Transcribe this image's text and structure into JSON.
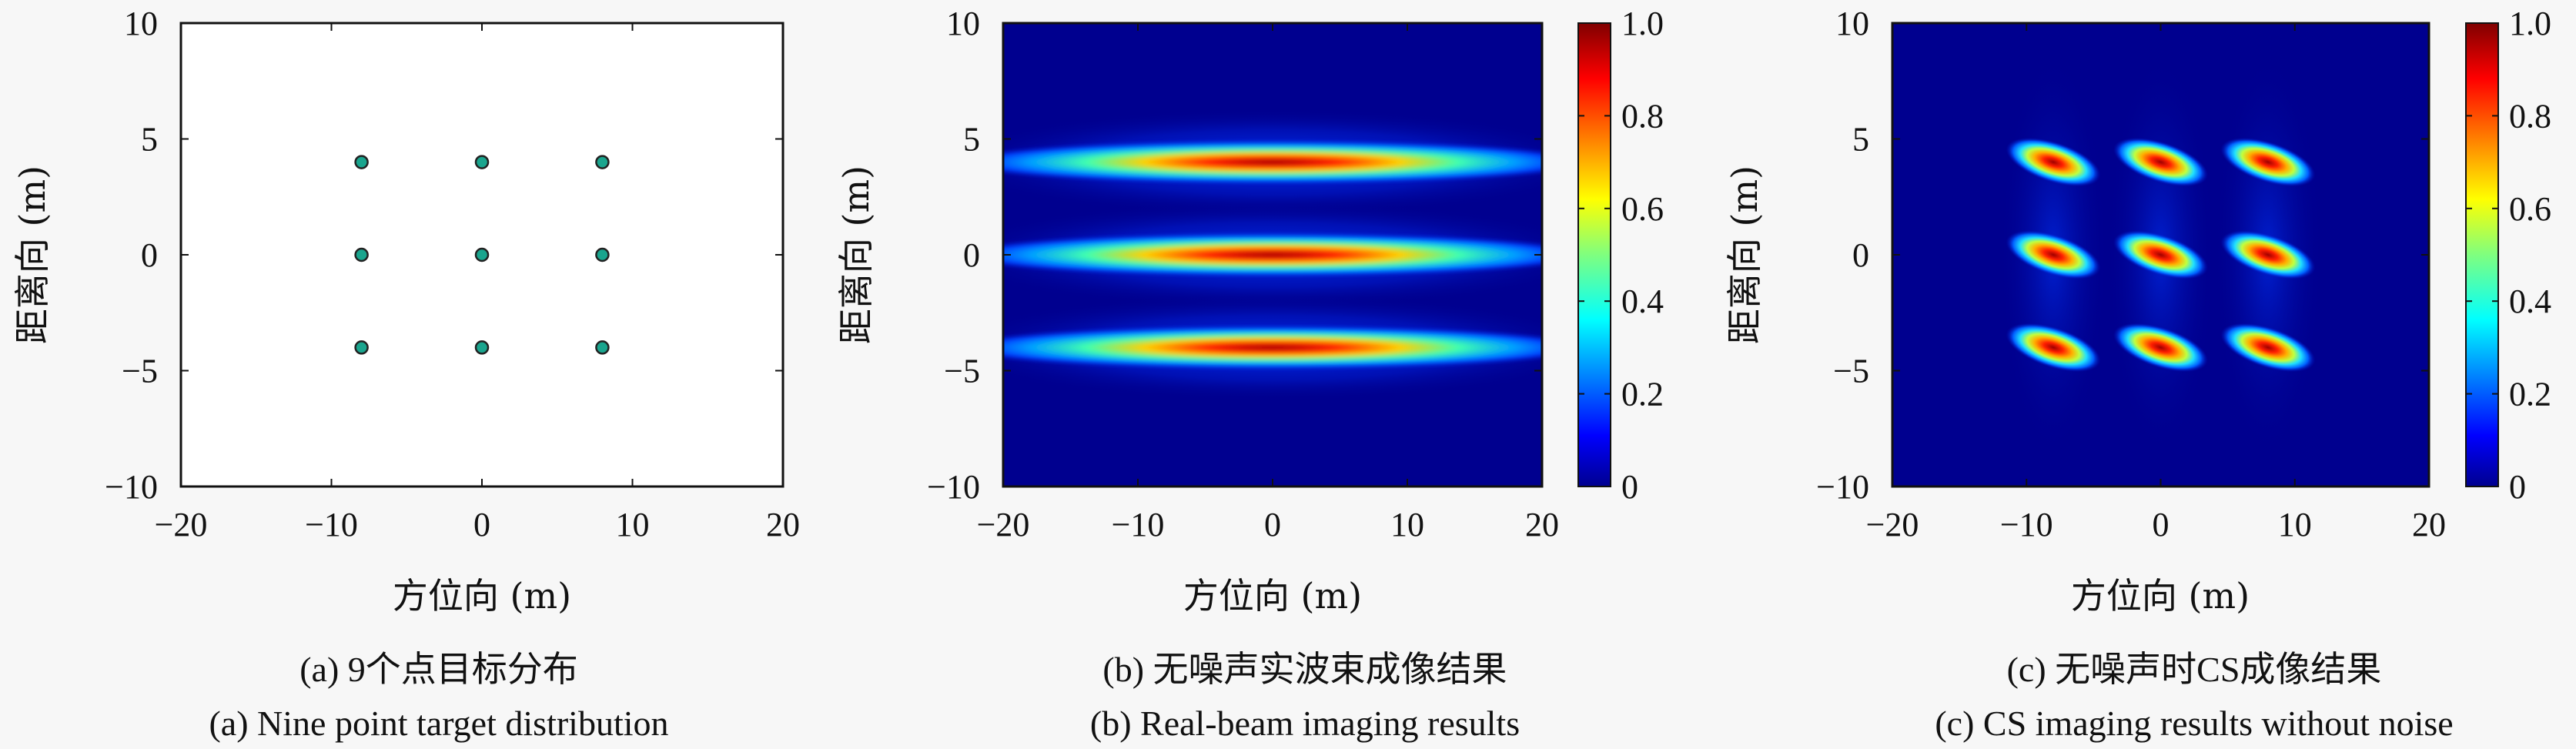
{
  "chart_data": [
    {
      "type": "scatter",
      "caption_cn": "(a) 9个点目标分布",
      "caption_en": "(a) Nine point target distribution",
      "xlabel": "方位向 (m)",
      "ylabel": "距离向 (m)",
      "xlim": [
        -20,
        20
      ],
      "ylim": [
        -10,
        10
      ],
      "xticks": [
        "−20",
        "−10",
        "0",
        "10",
        "20"
      ],
      "yticks": [
        "10",
        "5",
        "0",
        "−5",
        "−10"
      ],
      "points": [
        {
          "x": -8,
          "y": 4
        },
        {
          "x": 0,
          "y": 4
        },
        {
          "x": 8,
          "y": 4
        },
        {
          "x": -8,
          "y": 0
        },
        {
          "x": 0,
          "y": 0
        },
        {
          "x": 8,
          "y": 0
        },
        {
          "x": -8,
          "y": -4
        },
        {
          "x": 0,
          "y": -4
        },
        {
          "x": 8,
          "y": -4
        }
      ],
      "marker_color": "#1aa58e",
      "grid": false
    },
    {
      "type": "heatmap",
      "caption_cn": "(b) 无噪声实波束成像结果",
      "caption_en": "(b) Real-beam imaging results",
      "xlabel": "方位向 (m)",
      "ylabel": "距离向 (m)",
      "xlim": [
        -20,
        20
      ],
      "ylim": [
        -10,
        10
      ],
      "xticks": [
        "−20",
        "−10",
        "0",
        "10",
        "20"
      ],
      "yticks": [
        "10",
        "5",
        "0",
        "−5",
        "−10"
      ],
      "colorbar": {
        "range": [
          0,
          1
        ],
        "ticks": [
          "1.0",
          "0.8",
          "0.6",
          "0.4",
          "0.2",
          "0"
        ],
        "colormap": "jet"
      },
      "stripes_y": [
        4,
        0,
        -4
      ],
      "peak_value": 1.0,
      "grid": false
    },
    {
      "type": "heatmap",
      "caption_cn": "(c) 无噪声时CS成像结果",
      "caption_en": "(c) CS imaging results without noise",
      "xlabel": "方位向 (m)",
      "ylabel": "距离向 (m)",
      "xlim": [
        -20,
        20
      ],
      "ylim": [
        -10,
        10
      ],
      "xticks": [
        "−20",
        "−10",
        "0",
        "10",
        "20"
      ],
      "yticks": [
        "10",
        "5",
        "0",
        "−5",
        "−10"
      ],
      "colorbar": {
        "range": [
          0,
          1
        ],
        "ticks": [
          "1.0",
          "0.8",
          "0.6",
          "0.4",
          "0.2",
          "0"
        ],
        "colormap": "jet"
      },
      "peaks": [
        {
          "x": -8,
          "y": 4
        },
        {
          "x": 0,
          "y": 4
        },
        {
          "x": 8,
          "y": 4
        },
        {
          "x": -8,
          "y": 0
        },
        {
          "x": 0,
          "y": 0
        },
        {
          "x": 8,
          "y": 0
        },
        {
          "x": -8,
          "y": -4
        },
        {
          "x": 0,
          "y": -4
        },
        {
          "x": 8,
          "y": -4
        }
      ],
      "peak_value": 1.0,
      "grid": false
    }
  ]
}
